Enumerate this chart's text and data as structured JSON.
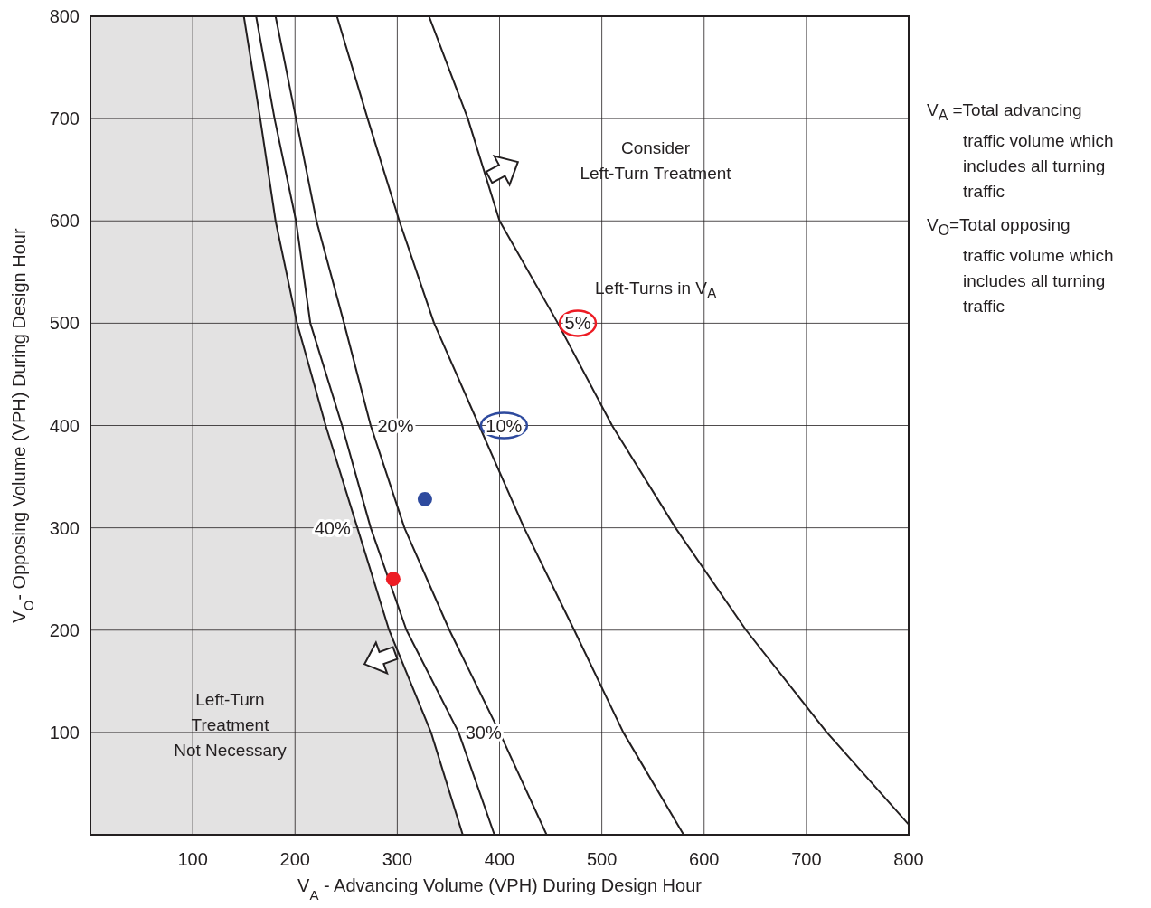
{
  "chart_data": {
    "type": "line",
    "xlabel": "V$_{A}$  - Advancing Volume (VPH) During Design Hour",
    "ylabel": "V$_{O}$- Opposing Volume (VPH) During Design Hour",
    "xlim": [
      0,
      800
    ],
    "ylim": [
      0,
      800
    ],
    "xticks": [
      100,
      200,
      300,
      400,
      500,
      600,
      700,
      800
    ],
    "yticks": [
      100,
      200,
      300,
      400,
      500,
      600,
      700,
      800
    ],
    "grid": true,
    "series": [
      {
        "name": "5%",
        "color": "#231f20",
        "x": [
          331,
          369,
          400,
          457,
          510,
          572,
          641,
          720,
          800
        ],
        "values": [
          800,
          700,
          600,
          500,
          400,
          300,
          200,
          100,
          10
        ]
      },
      {
        "name": "10%",
        "color": "#231f20",
        "x": [
          241,
          271,
          302,
          336,
          380,
          424,
          473,
          521,
          580
        ],
        "values": [
          800,
          700,
          600,
          500,
          400,
          300,
          200,
          100,
          0
        ]
      },
      {
        "name": "20%",
        "color": "#231f20",
        "x": [
          181,
          201,
          221,
          248,
          274,
          307,
          351,
          400,
          446
        ],
        "values": [
          800,
          700,
          600,
          500,
          400,
          300,
          200,
          100,
          0
        ]
      },
      {
        "name": "30%",
        "color": "#231f20",
        "x": [
          162,
          180,
          201,
          215,
          246,
          274,
          309,
          360,
          395
        ],
        "values": [
          800,
          700,
          600,
          500,
          400,
          300,
          200,
          100,
          0
        ]
      },
      {
        "name": "40%",
        "type": "area",
        "color": "#231f20",
        "x": [
          0,
          150,
          166,
          181,
          202,
          230,
          261,
          292,
          333,
          364
        ],
        "values": [
          800,
          800,
          700,
          600,
          500,
          400,
          300,
          200,
          100,
          0
        ]
      },
      {
        "type": "scatter",
        "x": [
          296,
          327
        ],
        "values": [
          250,
          328
        ],
        "colors": [
          "#ed1c24",
          "#2e4a9e"
        ]
      }
    ],
    "annotations": [
      "Consider\nLeft-Turn Treatment",
      "Left-Turns in V$_{A}$",
      "Left-Turn\nTreatment\nNot Necessary",
      "V$_{A}$ =Total advancing\ntraffic volume which\nincludes all turning\ntraffic",
      "V$_{O}$=Total opposing\ntraffic volume which\nincludes all turning\ntraffic"
    ]
  }
}
